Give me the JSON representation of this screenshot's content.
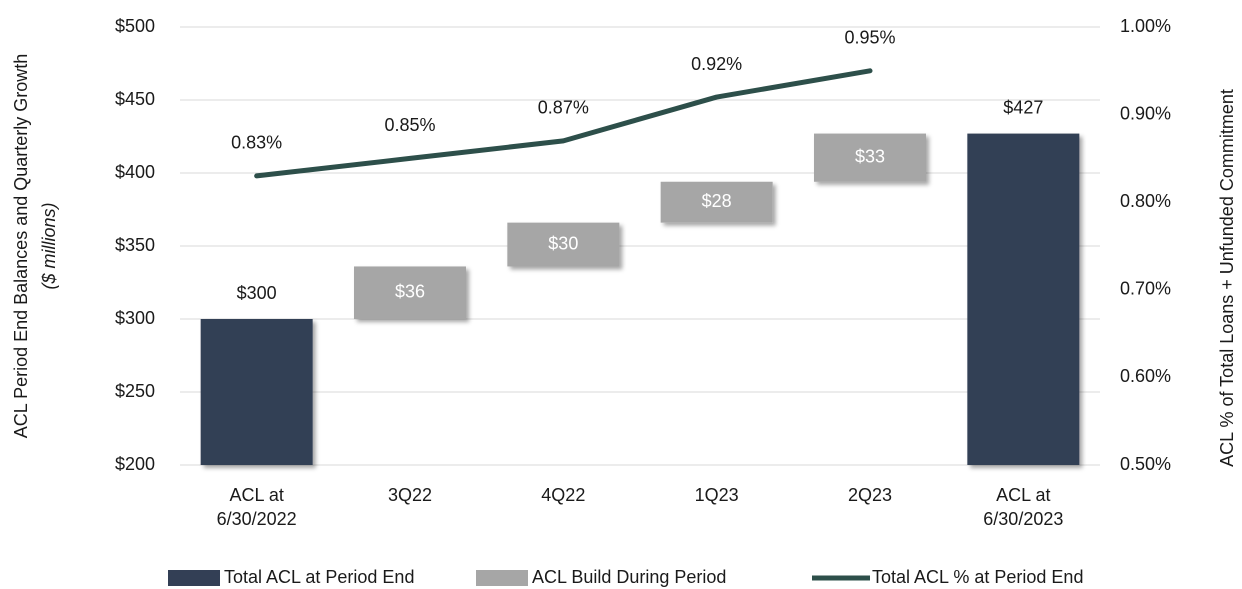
{
  "chart_data": {
    "type": "waterfall",
    "categories": [
      "ACL at 6/30/2022",
      "3Q22",
      "4Q22",
      "1Q23",
      "2Q23",
      "ACL at 6/30/2023"
    ],
    "series": [
      {
        "name": "Total ACL at Period End",
        "type": "bar",
        "color": "#333f55",
        "values": [
          300,
          null,
          null,
          null,
          null,
          427
        ],
        "value_labels": [
          "$300",
          null,
          null,
          null,
          null,
          "$427"
        ]
      },
      {
        "name": "ACL Build During Period",
        "type": "floating_bar",
        "color": "#a6a6a6",
        "values": [
          null,
          36,
          30,
          28,
          33,
          null
        ],
        "value_labels": [
          null,
          "$36",
          "$30",
          "$28",
          "$33",
          null
        ]
      },
      {
        "name": "Total ACL % at Period End",
        "type": "line",
        "axis": "y2",
        "color": "#2d4f4a",
        "values": [
          0.83,
          0.85,
          0.87,
          0.92,
          0.95,
          null
        ],
        "value_labels": [
          "0.83%",
          "0.85%",
          "0.87%",
          "0.92%",
          "0.95%",
          null
        ]
      }
    ],
    "ylabel": "ACL Period End Balances and Quarterly Growth",
    "ylabel_note": "($ millions)",
    "y2label": "ACL % of Total Loans + Unfunded Commitment",
    "ylim": [
      200,
      500
    ],
    "yticks": [
      {
        "value": 200,
        "label": "$200"
      },
      {
        "value": 250,
        "label": "$250"
      },
      {
        "value": 300,
        "label": "$300"
      },
      {
        "value": 350,
        "label": "$350"
      },
      {
        "value": 400,
        "label": "$400"
      },
      {
        "value": 450,
        "label": "$450"
      },
      {
        "value": 500,
        "label": "$500"
      }
    ],
    "y2lim": [
      0.5,
      1.0
    ],
    "y2ticks": [
      {
        "value": 0.5,
        "label": "0.50%"
      },
      {
        "value": 0.6,
        "label": "0.60%"
      },
      {
        "value": 0.7,
        "label": "0.70%"
      },
      {
        "value": 0.8,
        "label": "0.80%"
      },
      {
        "value": 0.9,
        "label": "0.90%"
      },
      {
        "value": 1.0,
        "label": "1.00%"
      }
    ],
    "grid": true,
    "legend": "bottom"
  }
}
